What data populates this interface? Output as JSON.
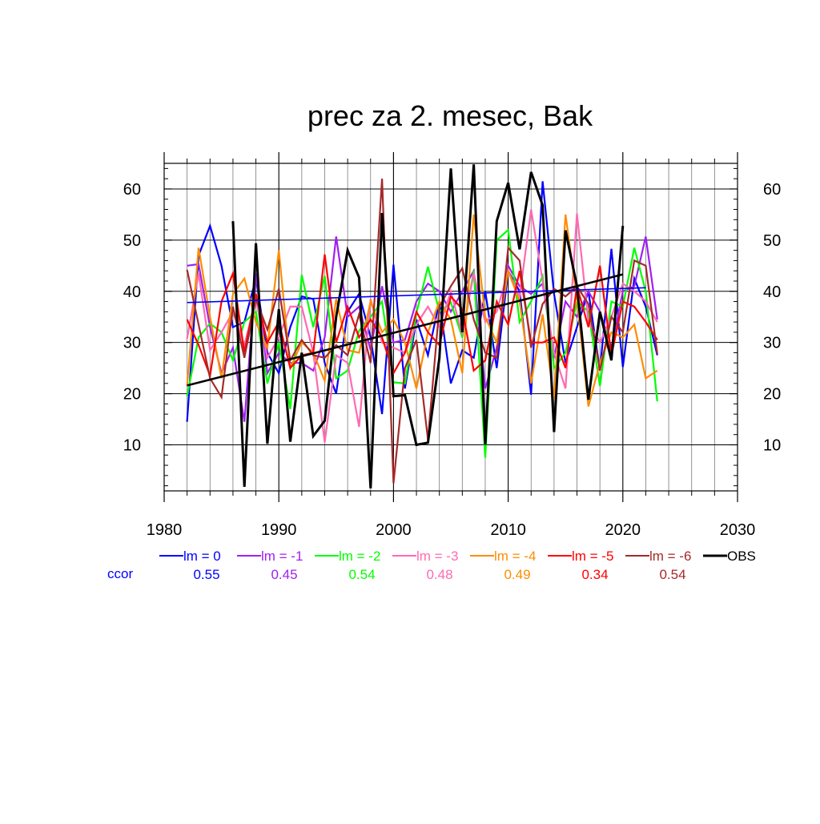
{
  "chart_data": {
    "type": "line",
    "title": "prec za 2. mesec, Bak",
    "xlabel": "",
    "ylabel": "",
    "xlim": [
      1980,
      2030
    ],
    "ylim": [
      1,
      65
    ],
    "x_ticks": [
      1980,
      1990,
      2000,
      2010,
      2020,
      2030
    ],
    "y_ticks": [
      10,
      20,
      30,
      40,
      50,
      60
    ],
    "grid": true,
    "legend_position": "bottom",
    "ccor_label": "ccor",
    "ccor_color": "#0000ff",
    "series": [
      {
        "name": "lm = 0",
        "color": "#0000ff",
        "ccor": "0.55",
        "x_start": 1982,
        "values": [
          14.5,
          47,
          52.8,
          45,
          33,
          34,
          42.5,
          28,
          24,
          33,
          39,
          38.5,
          26,
          20,
          36,
          39.5,
          31,
          16,
          45.2,
          21,
          34.5,
          27.5,
          38,
          22,
          28.5,
          27,
          40,
          25,
          44,
          40,
          19.8,
          61.5,
          39.5,
          26,
          33,
          40,
          24.5,
          48.3,
          25.2,
          42.5,
          37,
          27.5
        ]
      },
      {
        "name": "lm = -1",
        "color": "#a020f0",
        "ccor": "0.45",
        "x_start": 1982,
        "values": [
          45,
          45.3,
          33,
          24,
          29,
          14.5,
          43.5,
          24,
          28,
          26,
          26,
          24.5,
          31,
          50.7,
          35,
          37,
          28.5,
          41,
          30,
          30.5,
          38,
          41.5,
          40,
          36,
          40,
          44,
          21,
          29,
          45,
          41,
          39.5,
          41.5,
          27,
          38,
          35,
          40,
          36,
          29,
          40,
          41,
          50.7,
          34.5
        ]
      },
      {
        "name": "lm = -2",
        "color": "#00ff00",
        "ccor": "0.54",
        "x_start": 1982,
        "values": [
          19.5,
          31,
          33.7,
          32,
          26.5,
          34,
          36,
          22,
          30,
          17,
          43.2,
          33,
          43,
          23,
          24.5,
          32.3,
          35,
          38,
          22.2,
          22,
          35.7,
          44.8,
          36,
          37.8,
          31,
          44,
          7.5,
          50,
          52,
          34,
          38,
          43,
          25,
          28,
          38,
          36,
          21.5,
          38,
          37,
          48.5,
          40,
          18.5
        ]
      },
      {
        "name": "lm = -3",
        "color": "#ff69b4",
        "ccor": "0.48",
        "x_start": 1982,
        "values": [
          30.7,
          43.5,
          28.5,
          32,
          36,
          29.5,
          38.5,
          27,
          31,
          37,
          37,
          28,
          10.5,
          27.5,
          26,
          13.5,
          38.5,
          30,
          29,
          28,
          33.5,
          37,
          33,
          40,
          31.5,
          43.5,
          34,
          36,
          44,
          39,
          56,
          42,
          28,
          21,
          55.2,
          34,
          30,
          35,
          41.5,
          40,
          38,
          34
        ]
      },
      {
        "name": "lm = -4",
        "color": "#ff8c00",
        "ccor": "0.49",
        "x_start": 1982,
        "values": [
          21.5,
          48.5,
          35,
          23,
          39.5,
          42.5,
          34,
          29,
          48,
          25,
          30,
          28,
          22.5,
          38.5,
          28.5,
          28,
          38,
          32,
          34.5,
          30,
          21,
          32,
          38,
          34.5,
          24,
          55,
          35,
          30,
          44,
          38,
          22,
          35.5,
          19,
          55,
          38.5,
          17.5,
          26,
          32,
          31,
          33.5,
          23,
          24.5
        ]
      },
      {
        "name": "lm = -5",
        "color": "#ff0000",
        "ccor": "0.34",
        "x_start": 1982,
        "values": [
          34.5,
          29.5,
          23.5,
          38,
          43.5,
          28,
          39.5,
          30,
          34,
          25,
          27.5,
          28,
          47.2,
          30,
          37,
          31,
          34.5,
          31,
          24,
          28,
          36,
          32,
          29.5,
          39,
          36.5,
          24.5,
          26.5,
          38,
          33.5,
          44,
          30,
          30,
          31,
          25,
          41,
          33,
          45,
          27.5,
          38,
          37,
          34,
          30.5
        ]
      },
      {
        "name": "lm = -6",
        "color": "#a52a2a",
        "ccor": "0.54",
        "x_start": 1982,
        "values": [
          44.2,
          33.5,
          23,
          19.3,
          37,
          27,
          38.5,
          32.5,
          40.5,
          26.5,
          30.5,
          27.5,
          27,
          29.5,
          27.5,
          35.5,
          26,
          62,
          2.5,
          25,
          30.5,
          11,
          37,
          41,
          44.5,
          34.5,
          28,
          27,
          48.5,
          46,
          29,
          37.5,
          40.5,
          39,
          41,
          37.5,
          24.5,
          35,
          32,
          46,
          45,
          27.8
        ]
      },
      {
        "name": "OBS",
        "color": "#000000",
        "ccor": "",
        "x_start": 1986,
        "values": [
          53.7,
          1.8,
          49.4,
          10.2,
          36.5,
          10.6,
          28,
          11.7,
          14.7,
          35,
          48,
          42.7,
          1.5,
          55.3,
          19.5,
          19.7,
          10,
          10.4,
          27,
          64,
          32,
          64.8,
          10,
          53.7,
          61.2,
          48.2,
          63.3,
          56.8,
          12.5,
          51.9,
          41,
          18.8,
          36,
          26.5,
          52.8
        ]
      }
    ],
    "trend_lines": [
      {
        "series": "lm = 0",
        "color": "#0000ff",
        "x": [
          1982,
          2022
        ],
        "y": [
          37.8,
          40.7
        ]
      },
      {
        "series": "OBS",
        "color": "#000000",
        "x": [
          1982,
          2020
        ],
        "y": [
          21.6,
          43.3
        ]
      }
    ]
  }
}
